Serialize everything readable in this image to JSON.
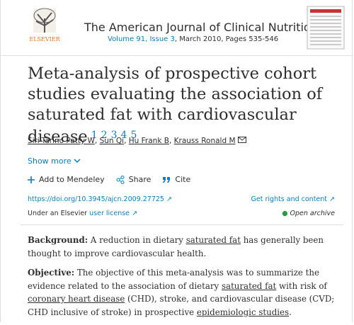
{
  "header": {
    "publisher": "ELSEVIER",
    "journal": "The American Journal of Clinical Nutrition",
    "issue": "Volume 91, Issue 3",
    "issue_details": ", March 2010, Pages 535-546"
  },
  "article": {
    "title": "Meta-analysis of prospective cohort studies evaluating the association of saturated fat with cardiovascular disease",
    "references": [
      "1",
      "2",
      "3",
      "4",
      "5"
    ],
    "authors": [
      "Siri-Tarino Patty W",
      "Sun Qi",
      "Hu Frank B",
      "Krauss Ronald M"
    ],
    "show_more": "Show more",
    "actions": [
      "Add to Mendeley",
      "Share",
      "Cite"
    ],
    "doi": "https://doi.org/10.3945/ajcn.2009.27725",
    "rights": "Get rights and content",
    "license_prefix": "Under an Elsevier",
    "license_link": "user license",
    "access": "Open archive"
  },
  "abstract": [
    {
      "heading": "Background:",
      "segments": [
        " A reduction in dietary ",
        {
          "text": "saturated fat",
          "link": true
        },
        " has generally been thought to improve cardiovascular health."
      ]
    },
    {
      "heading": "Objective:",
      "segments": [
        " The objective of this meta-analysis was to summarize the evidence related to the association of dietary ",
        {
          "text": "saturated fat",
          "link": true
        },
        " with risk of ",
        {
          "text": "coronary heart disease",
          "link": true
        },
        " (CHD), stroke, and cardiovascular disease (CVD; CHD inclusive of stroke) in prospective ",
        {
          "text": "epidemiologic studies",
          "link": true
        },
        "."
      ]
    }
  ]
}
